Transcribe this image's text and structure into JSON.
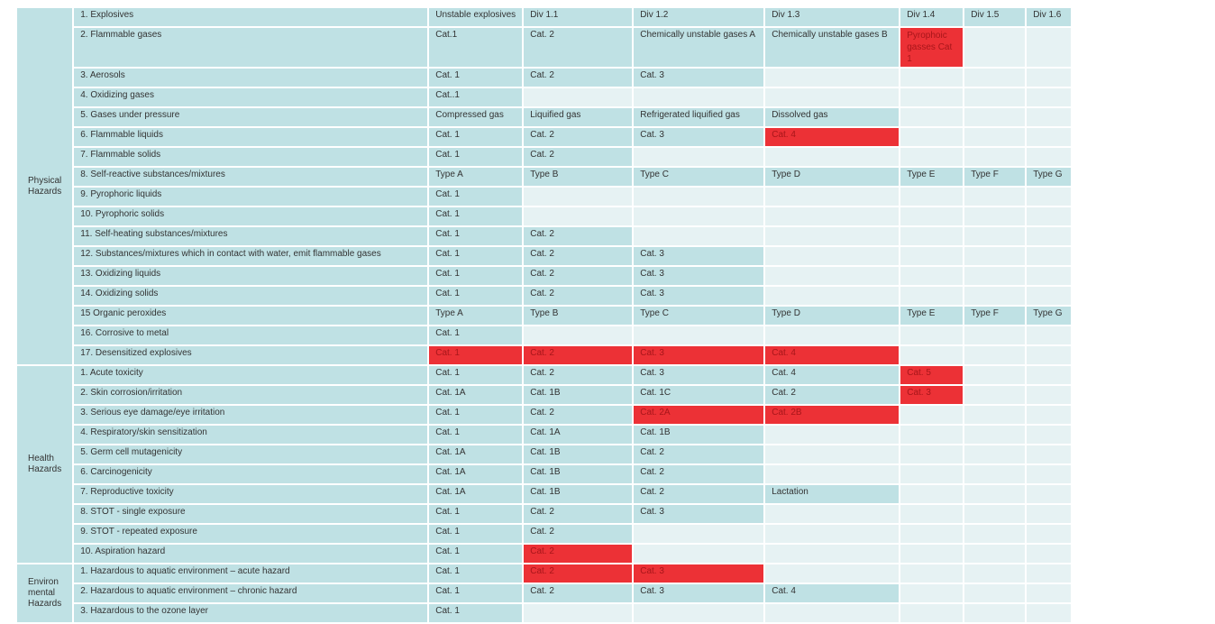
{
  "colors": {
    "category": "#bfe1e4",
    "empty": "#e6f2f3",
    "highlight": "#ec3136"
  },
  "groups": [
    {
      "label": "Physical Hazards",
      "rows": [
        {
          "hazard": "1. Explosives",
          "cells": [
            "Unstable explosives",
            "Div 1.1",
            "Div 1.2",
            "Div 1.3",
            "Div 1.4",
            "Div 1.5",
            "Div 1.6"
          ],
          "red": []
        },
        {
          "hazard": "2. Flammable gases",
          "cells": [
            "Cat.1",
            "Cat. 2",
            "Chemically unstable gases A",
            "Chemically unstable gases B",
            "Pyrophoic gasses Cat 1",
            "",
            ""
          ],
          "red": [
            4
          ]
        },
        {
          "hazard": "3. Aerosols",
          "cells": [
            "Cat. 1",
            "Cat. 2",
            "Cat. 3",
            "",
            "",
            "",
            ""
          ],
          "red": []
        },
        {
          "hazard": "4. Oxidizing gases",
          "cells": [
            "Cat..1",
            "",
            "",
            "",
            "",
            "",
            ""
          ],
          "red": []
        },
        {
          "hazard": "5. Gases under pressure",
          "cells": [
            "Compressed gas",
            "Liquified gas",
            "Refrigerated liquified gas",
            "Dissolved gas",
            "",
            "",
            ""
          ],
          "red": []
        },
        {
          "hazard": "6. Flammable liquids",
          "cells": [
            "Cat. 1",
            "Cat. 2",
            "Cat. 3",
            "Cat. 4",
            "",
            "",
            ""
          ],
          "red": [
            3
          ]
        },
        {
          "hazard": "7. Flammable solids",
          "cells": [
            "Cat. 1",
            "Cat. 2",
            "",
            "",
            "",
            "",
            ""
          ],
          "red": []
        },
        {
          "hazard": "8. Self-reactive substances/mixtures",
          "cells": [
            "Type A",
            "Type B",
            "Type C",
            "Type D",
            "Type E",
            "Type F",
            "Type G"
          ],
          "red": []
        },
        {
          "hazard": "9. Pyrophoric liquids",
          "cells": [
            "Cat. 1",
            "",
            "",
            "",
            "",
            "",
            ""
          ],
          "red": []
        },
        {
          "hazard": "10. Pyrophoric solids",
          "cells": [
            "Cat. 1",
            "",
            "",
            "",
            "",
            "",
            ""
          ],
          "red": []
        },
        {
          "hazard": "11. Self-heating substances/mixtures",
          "cells": [
            "Cat. 1",
            "Cat. 2",
            "",
            "",
            "",
            "",
            ""
          ],
          "red": []
        },
        {
          "hazard": "12. Substances/mixtures which in contact with water, emit flammable gases",
          "cells": [
            "Cat. 1",
            "Cat. 2",
            "Cat. 3",
            "",
            "",
            "",
            ""
          ],
          "red": []
        },
        {
          "hazard": "13. Oxidizing liquids",
          "cells": [
            "Cat. 1",
            "Cat. 2",
            "Cat. 3",
            "",
            "",
            "",
            ""
          ],
          "red": []
        },
        {
          "hazard": "14. Oxidizing solids",
          "cells": [
            "Cat. 1",
            "Cat. 2",
            "Cat. 3",
            "",
            "",
            "",
            ""
          ],
          "red": []
        },
        {
          "hazard": "15 Organic peroxides",
          "cells": [
            "Type A",
            "Type B",
            "Type C",
            "Type D",
            "Type E",
            "Type F",
            "Type G"
          ],
          "red": []
        },
        {
          "hazard": "16. Corrosive to metal",
          "cells": [
            "Cat. 1",
            "",
            "",
            "",
            "",
            "",
            ""
          ],
          "red": []
        },
        {
          "hazard": "17. Desensitized explosives",
          "cells": [
            "Cat. 1",
            "Cat. 2",
            "Cat. 3",
            "Cat. 4",
            "",
            "",
            ""
          ],
          "red": [
            0,
            1,
            2,
            3
          ]
        }
      ]
    },
    {
      "label": "Health Hazards",
      "rows": [
        {
          "hazard": "1. Acute toxicity",
          "cells": [
            "Cat. 1",
            "Cat. 2",
            "Cat. 3",
            "Cat. 4",
            "Cat. 5",
            "",
            ""
          ],
          "red": [
            4
          ]
        },
        {
          "hazard": "2. Skin corrosion/irritation",
          "cells": [
            "Cat. 1A",
            "Cat. 1B",
            "Cat. 1C",
            "Cat. 2",
            "Cat. 3",
            "",
            ""
          ],
          "red": [
            4
          ]
        },
        {
          "hazard": "3. Serious eye damage/eye irritation",
          "cells": [
            "Cat. 1",
            "Cat. 2",
            "Cat. 2A",
            "Cat. 2B",
            "",
            "",
            ""
          ],
          "red": [
            2,
            3
          ]
        },
        {
          "hazard": "4. Respiratory/skin sensitization",
          "cells": [
            "Cat. 1",
            "Cat. 1A",
            "Cat. 1B",
            "",
            "",
            "",
            ""
          ],
          "red": []
        },
        {
          "hazard": "5. Germ cell mutagenicity",
          "cells": [
            "Cat. 1A",
            "Cat. 1B",
            "Cat. 2",
            "",
            "",
            "",
            ""
          ],
          "red": []
        },
        {
          "hazard": "6. Carcinogenicity",
          "cells": [
            "Cat. 1A",
            "Cat. 1B",
            "Cat. 2",
            "",
            "",
            "",
            ""
          ],
          "red": []
        },
        {
          "hazard": "7. Reproductive toxicity",
          "cells": [
            "Cat. 1A",
            "Cat. 1B",
            "Cat. 2",
            "Lactation",
            "",
            "",
            ""
          ],
          "red": []
        },
        {
          "hazard": "8. STOT - single exposure",
          "cells": [
            "Cat. 1",
            "Cat. 2",
            "Cat. 3",
            "",
            "",
            "",
            ""
          ],
          "red": []
        },
        {
          "hazard": "9. STOT - repeated exposure",
          "cells": [
            "Cat. 1",
            "Cat. 2",
            "",
            "",
            "",
            "",
            ""
          ],
          "red": []
        },
        {
          "hazard": "10. Aspiration hazard",
          "cells": [
            "Cat. 1",
            "Cat. 2",
            "",
            "",
            "",
            "",
            ""
          ],
          "red": [
            1
          ]
        }
      ]
    },
    {
      "label": "Environ mental Hazards",
      "rows": [
        {
          "hazard": "1. Hazardous to aquatic environment – acute hazard",
          "cells": [
            "Cat. 1",
            "Cat. 2",
            "Cat. 3",
            "",
            "",
            "",
            ""
          ],
          "red": [
            1,
            2
          ]
        },
        {
          "hazard": "2. Hazardous to aquatic environment – chronic hazard",
          "cells": [
            "Cat. 1",
            "Cat. 2",
            "Cat. 3",
            "Cat. 4",
            "",
            "",
            ""
          ],
          "red": []
        },
        {
          "hazard": "3. Hazardous to the ozone layer",
          "cells": [
            "Cat. 1",
            "",
            "",
            "",
            "",
            "",
            ""
          ],
          "red": []
        }
      ]
    }
  ]
}
